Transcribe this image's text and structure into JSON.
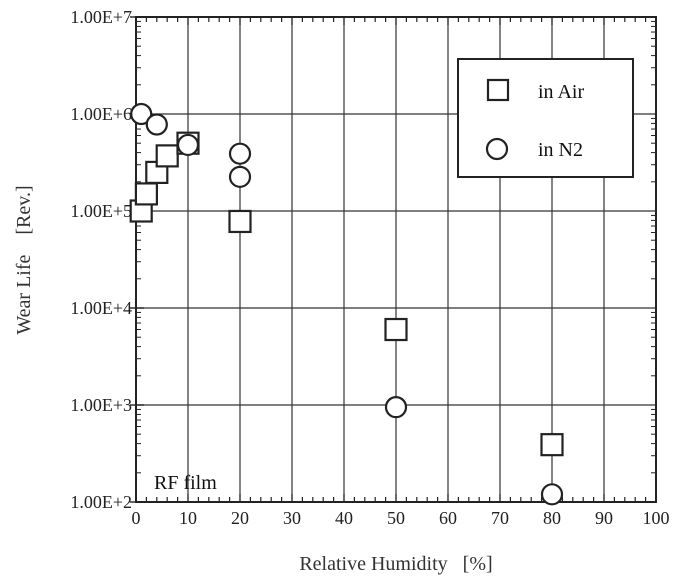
{
  "chart_data": {
    "type": "scatter",
    "title": "",
    "xlabel": "Relative Humidity   [%]",
    "ylabel": "Wear Life    [Rev.]",
    "xlim": [
      0,
      100
    ],
    "ylim": [
      100,
      10000000
    ],
    "y_scale": "log",
    "grid": true,
    "legend_position": "top-right",
    "annotation": "RF film",
    "x_ticks": [
      0,
      10,
      20,
      30,
      40,
      50,
      60,
      70,
      80,
      90,
      100
    ],
    "x_tick_labels": [
      "0",
      "10",
      "20",
      "30",
      "40",
      "50",
      "60",
      "70",
      "80",
      "90",
      "100"
    ],
    "y_ticks": [
      100,
      1000,
      10000,
      100000,
      1000000,
      10000000
    ],
    "y_tick_labels": [
      "1.00E+2",
      "1.00E+3",
      "1.00E+4",
      "1.00E+5",
      "1.00E+6",
      "1.00E+7"
    ],
    "series": [
      {
        "name": "in Air",
        "marker": "square",
        "points": [
          {
            "x": 1,
            "y": 100000
          },
          {
            "x": 2,
            "y": 150000
          },
          {
            "x": 4,
            "y": 250000
          },
          {
            "x": 6,
            "y": 370000
          },
          {
            "x": 10,
            "y": 500000
          },
          {
            "x": 20,
            "y": 78000
          },
          {
            "x": 50,
            "y": 6000
          },
          {
            "x": 80,
            "y": 390
          }
        ]
      },
      {
        "name": "in N2",
        "marker": "circle",
        "points": [
          {
            "x": 1,
            "y": 1000000
          },
          {
            "x": 4,
            "y": 780000
          },
          {
            "x": 10,
            "y": 480000
          },
          {
            "x": 20,
            "y": 390000
          },
          {
            "x": 20,
            "y": 225000
          },
          {
            "x": 50,
            "y": 950
          },
          {
            "x": 80,
            "y": 120
          }
        ]
      }
    ]
  }
}
